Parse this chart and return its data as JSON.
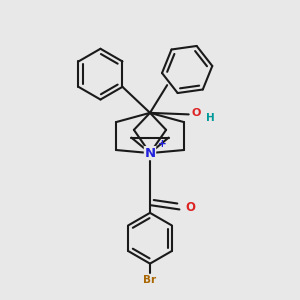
{
  "bg_color": "#e8e8e8",
  "bond_color": "#1a1a1a",
  "N_color": "#2222dd",
  "O_color": "#dd2222",
  "Br_color": "#aa6600",
  "H_color": "#009999",
  "plus_color": "#2222dd",
  "lw": 1.5,
  "figsize": [
    3.0,
    3.0
  ],
  "dpi": 100,
  "xlim": [
    0.05,
    0.95
  ],
  "ylim": [
    0.02,
    0.98
  ]
}
